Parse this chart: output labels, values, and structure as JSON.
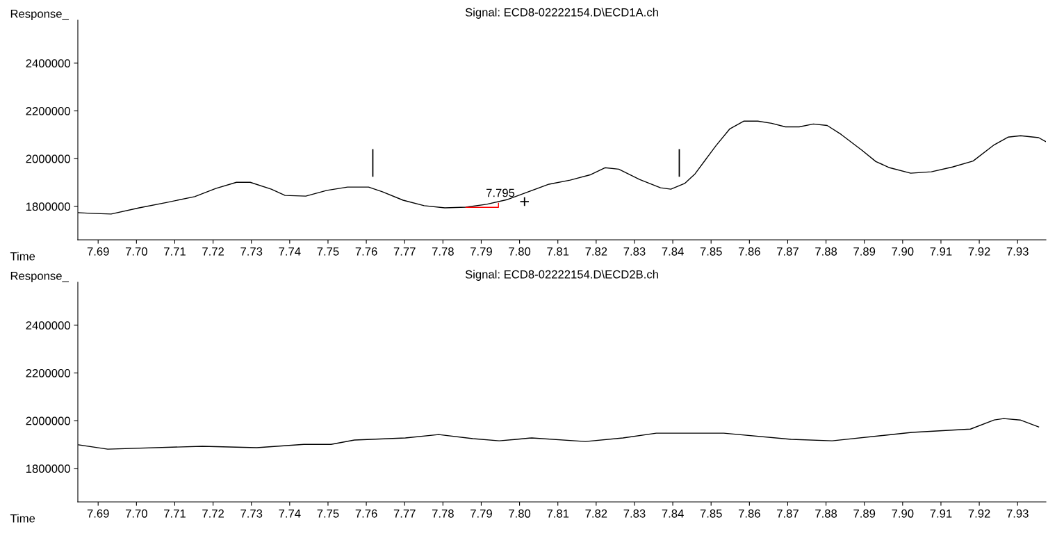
{
  "chart_data": [
    {
      "type": "line",
      "title": "Signal: ECD8-02222154.D\\ECD1A.ch",
      "ylabel": "Response_",
      "xlabel": "Time",
      "xlim": [
        7.6847,
        7.9374
      ],
      "ylim": [
        1660000,
        2580000
      ],
      "xticks": [
        7.69,
        {
          "value": 7.7,
          "label": "7.70"
        },
        7.71,
        7.72,
        7.73,
        7.74,
        7.75,
        7.76,
        7.77,
        7.78,
        7.79,
        {
          "value": 7.8,
          "label": "7.80"
        },
        7.81,
        7.82,
        7.83,
        7.84,
        7.85,
        7.86,
        7.87,
        7.88,
        7.89,
        {
          "value": 7.9,
          "label": "7.90"
        },
        7.91,
        7.92,
        7.93
      ],
      "yticks": [
        1800000,
        2000000,
        2200000,
        2400000
      ],
      "grid": false,
      "legend": false,
      "series": [
        {
          "type": "line",
          "color": "#000000",
          "x": [
            7.6847,
            7.688,
            7.6934,
            7.7007,
            7.708,
            7.7152,
            7.7207,
            7.7261,
            7.7297,
            7.7352,
            7.7388,
            7.7442,
            7.7497,
            7.7551,
            7.7606,
            7.7642,
            7.7696,
            7.7751,
            7.7805,
            7.786,
            7.7914,
            7.7969,
            7.8023,
            7.8077,
            7.8132,
            7.8186,
            7.8223,
            7.8259,
            7.8313,
            7.8368,
            7.8395,
            7.8431,
            7.8458,
            7.8513,
            7.8549,
            7.8585,
            7.8622,
            7.8658,
            7.8694,
            7.873,
            7.8767,
            7.8803,
            7.8839,
            7.8894,
            7.893,
            7.8966,
            7.9021,
            7.9075,
            7.913,
            7.9184,
            7.9239,
            7.9275,
            7.9308,
            7.9355,
            7.9373
          ],
          "values": [
            1774000,
            1771000,
            1768000,
            1794000,
            1817000,
            1841000,
            1875000,
            1901000,
            1901000,
            1872000,
            1846000,
            1843000,
            1867000,
            1881000,
            1881000,
            1861000,
            1826000,
            1803000,
            1794000,
            1797000,
            1809000,
            1829000,
            1861000,
            1893000,
            1910000,
            1933000,
            1962000,
            1956000,
            1913000,
            1878000,
            1872000,
            1896000,
            1936000,
            2055000,
            2125000,
            2157000,
            2157000,
            2148000,
            2133000,
            2133000,
            2145000,
            2139000,
            2102000,
            2035000,
            1988000,
            1962000,
            1939000,
            1945000,
            1965000,
            1990000,
            2058000,
            2090000,
            2096000,
            2088000,
            2072000
          ]
        },
        {
          "type": "line",
          "color": "#ff0000",
          "x": [
            7.786,
            7.7945,
            7.7945
          ],
          "values": [
            1796000,
            1796000,
            1813000
          ]
        },
        {
          "type": "scatter",
          "color": "#000000",
          "marker": "cross",
          "x": [
            7.8013
          ],
          "values": [
            1820000
          ]
        }
      ],
      "ref_lines": [
        {
          "axis": "x",
          "value": 7.7617,
          "color": "#000000"
        },
        {
          "axis": "x",
          "value": 7.8417,
          "color": "#000000"
        }
      ],
      "annotations": [
        {
          "text": "7.795",
          "x": 7.795,
          "y": 1830000
        }
      ]
    },
    {
      "type": "line",
      "title": "Signal: ECD8-02222154.D\\ECD2B.ch",
      "ylabel": "Response_",
      "xlabel": "Time",
      "xlim": [
        7.6847,
        7.9374
      ],
      "ylim": [
        1660000,
        2580000
      ],
      "xticks": [
        7.69,
        {
          "value": 7.7,
          "label": "7.70"
        },
        7.71,
        7.72,
        7.73,
        7.74,
        7.75,
        7.76,
        7.77,
        7.78,
        7.79,
        {
          "value": 7.8,
          "label": "7.80"
        },
        7.81,
        7.82,
        7.83,
        7.84,
        7.85,
        7.86,
        7.87,
        7.88,
        7.89,
        {
          "value": 7.9,
          "label": "7.90"
        },
        7.91,
        7.92,
        7.93
      ],
      "yticks": [
        1800000,
        2000000,
        2200000,
        2400000
      ],
      "grid": false,
      "legend": false,
      "series": [
        {
          "type": "line",
          "color": "#000000",
          "x": [
            7.6849,
            7.6925,
            7.7172,
            7.7314,
            7.7437,
            7.7508,
            7.7569,
            7.7702,
            7.7789,
            7.7878,
            7.7947,
            7.7992,
            7.8032,
            7.8172,
            7.827,
            7.8357,
            7.8533,
            7.8709,
            7.8816,
            7.9024,
            7.9177,
            7.9239,
            7.9264,
            7.9307,
            7.9355
          ],
          "values": [
            1899000,
            1881000,
            1893000,
            1887000,
            1901000,
            1901000,
            1919000,
            1928000,
            1942000,
            1925000,
            1916000,
            1922000,
            1928000,
            1913000,
            1928000,
            1948000,
            1948000,
            1922000,
            1916000,
            1951000,
            1965000,
            2003000,
            2009000,
            2003000,
            1974000
          ]
        }
      ]
    }
  ]
}
